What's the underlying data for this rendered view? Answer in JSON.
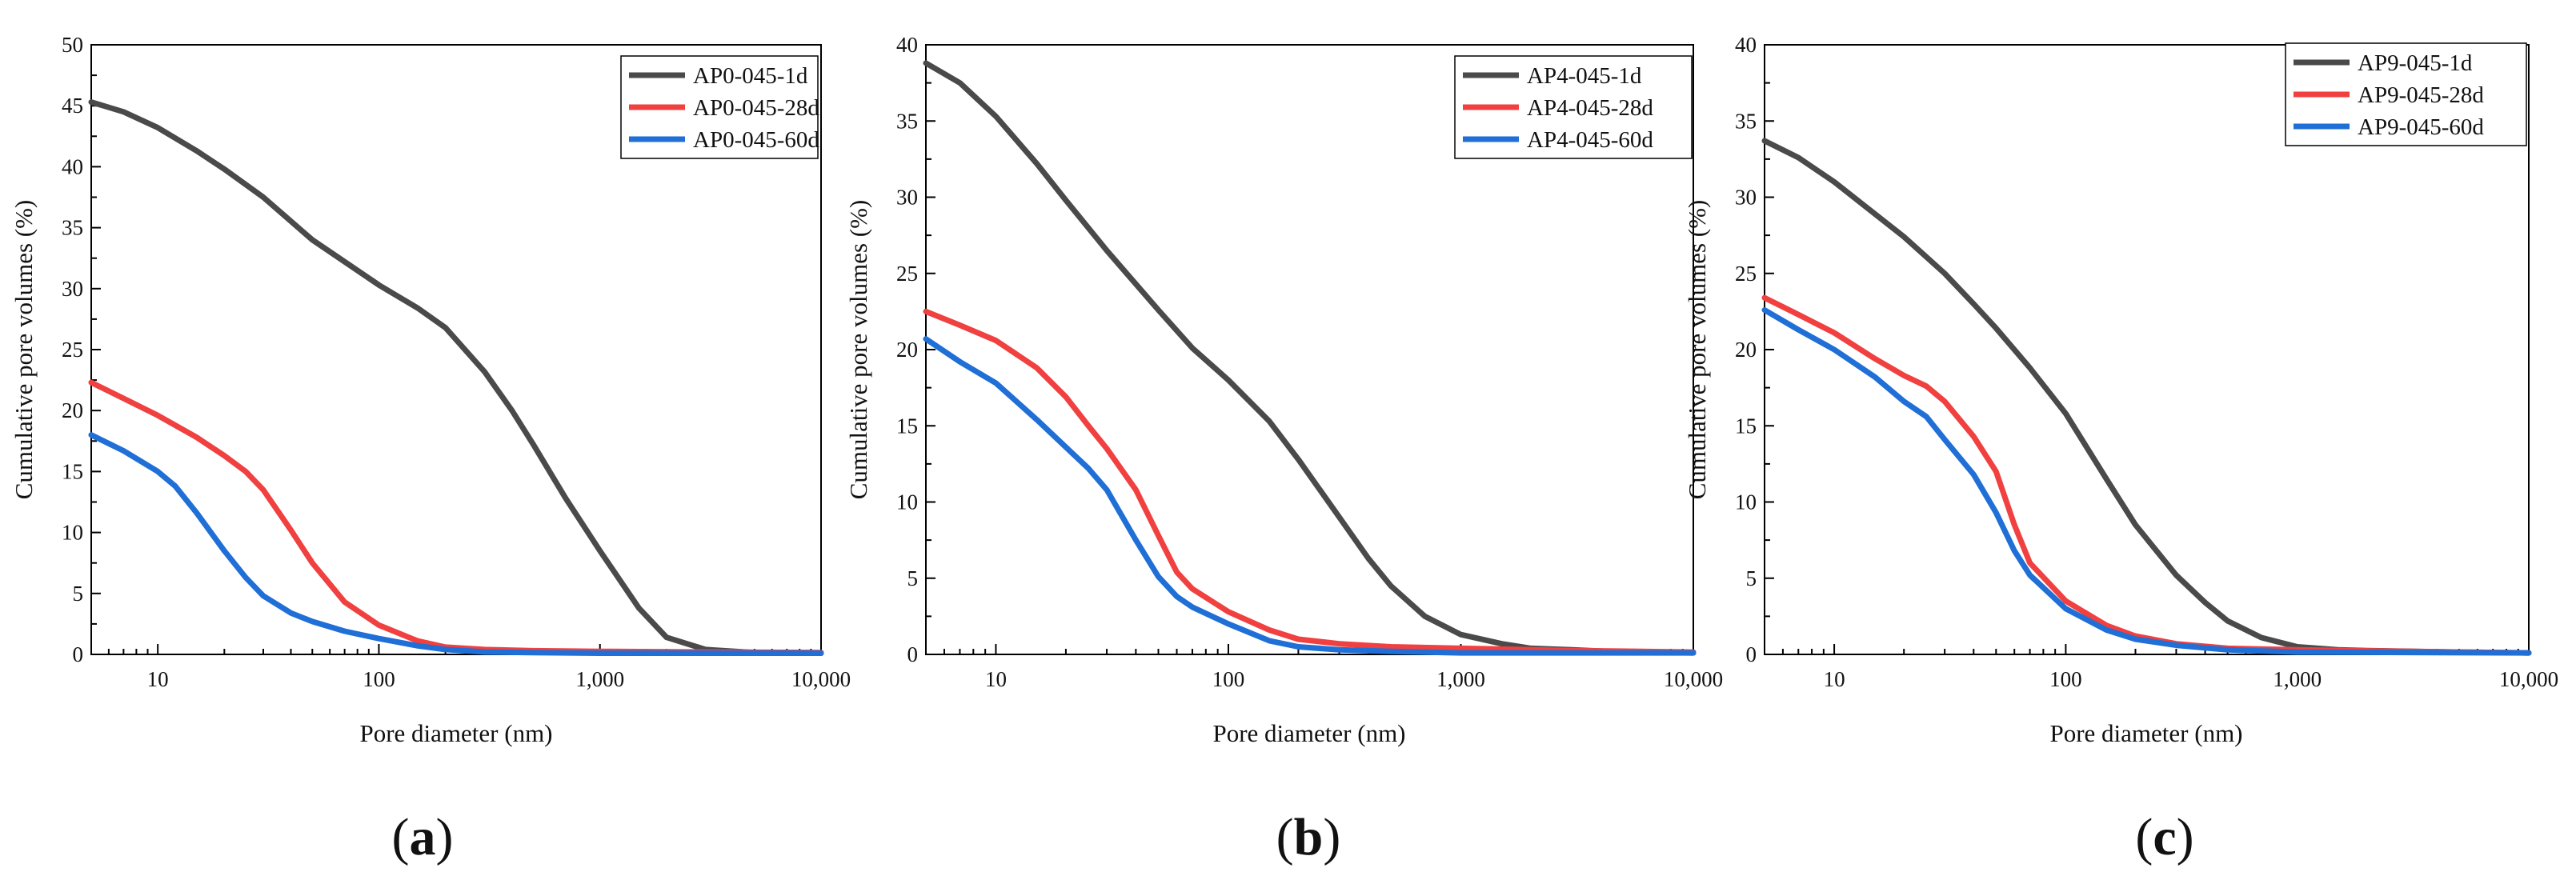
{
  "figure": {
    "panel_labels": [
      {
        "open": "(",
        "letter": "a",
        "close": ")"
      },
      {
        "open": "(",
        "letter": "b",
        "close": ")"
      },
      {
        "open": "(",
        "letter": "c",
        "close": ")"
      }
    ]
  },
  "chart_data": [
    {
      "type": "line",
      "title": "",
      "xlabel": "Pore diameter (nm)",
      "ylabel": "Cumulative pore volumes (%)",
      "xscale": "log",
      "xlim": [
        5,
        10000
      ],
      "ylim": [
        0,
        50
      ],
      "xticks": [
        {
          "value": 10,
          "label": "10"
        },
        {
          "value": 100,
          "label": "100"
        },
        {
          "value": 1000,
          "label": "1,000"
        },
        {
          "value": 10000,
          "label": "10,000"
        }
      ],
      "yticks": [
        0,
        5,
        10,
        15,
        20,
        25,
        30,
        35,
        40,
        45,
        50
      ],
      "ytick_labels": [
        "0",
        "5",
        "10",
        "15",
        "20",
        "25",
        "30",
        "35",
        "40",
        "45",
        "50"
      ],
      "grid": false,
      "legend_position": "top-right",
      "series": [
        {
          "name": "AP0-045-1d",
          "color": "#4a4a4a",
          "x": [
            5,
            7,
            10,
            15,
            20,
            30,
            50,
            100,
            150,
            200,
            300,
            400,
            500,
            700,
            1000,
            1500,
            2000,
            3000,
            5000,
            10000
          ],
          "values": [
            45.3,
            44.5,
            43.2,
            41.3,
            39.8,
            37.5,
            34.0,
            30.3,
            28.4,
            26.8,
            23.2,
            20.0,
            17.2,
            12.8,
            8.5,
            3.8,
            1.4,
            0.4,
            0.15,
            0.1
          ]
        },
        {
          "name": "AP0-045-28d",
          "color": "#f04040",
          "x": [
            5,
            7,
            10,
            15,
            20,
            25,
            30,
            40,
            50,
            70,
            100,
            150,
            200,
            300,
            500,
            1000,
            3000,
            10000
          ],
          "values": [
            22.3,
            21.0,
            19.6,
            17.8,
            16.3,
            15.0,
            13.5,
            10.2,
            7.5,
            4.3,
            2.4,
            1.1,
            0.6,
            0.4,
            0.3,
            0.25,
            0.2,
            0.15
          ]
        },
        {
          "name": "AP0-045-60d",
          "color": "#1f6fd6",
          "x": [
            5,
            7,
            10,
            12,
            15,
            20,
            25,
            30,
            40,
            50,
            70,
            100,
            150,
            200,
            300,
            500,
            1000,
            10000
          ],
          "values": [
            18.0,
            16.7,
            15.0,
            13.8,
            11.6,
            8.5,
            6.3,
            4.8,
            3.4,
            2.7,
            1.9,
            1.3,
            0.7,
            0.4,
            0.2,
            0.15,
            0.1,
            0.1
          ]
        }
      ]
    },
    {
      "type": "line",
      "title": "",
      "xlabel": "Pore diameter (nm)",
      "ylabel": "Cumulative pore volumes (%)",
      "xscale": "log",
      "xlim": [
        5,
        10000
      ],
      "ylim": [
        0,
        40
      ],
      "xticks": [
        {
          "value": 10,
          "label": "10"
        },
        {
          "value": 100,
          "label": "100"
        },
        {
          "value": 1000,
          "label": "1,000"
        },
        {
          "value": 10000,
          "label": "10,000"
        }
      ],
      "yticks": [
        0,
        5,
        10,
        15,
        20,
        25,
        30,
        35,
        40
      ],
      "ytick_labels": [
        "0",
        "5",
        "10",
        "15",
        "20",
        "25",
        "30",
        "35",
        "40"
      ],
      "grid": false,
      "legend_position": "top-right",
      "series": [
        {
          "name": "AP4-045-1d",
          "color": "#4a4a4a",
          "x": [
            5,
            7,
            10,
            15,
            20,
            30,
            50,
            70,
            100,
            150,
            200,
            300,
            400,
            500,
            700,
            1000,
            1500,
            2000,
            3000,
            5000,
            10000
          ],
          "values": [
            38.8,
            37.5,
            35.3,
            32.2,
            29.8,
            26.5,
            22.6,
            20.1,
            18.0,
            15.3,
            12.8,
            9.0,
            6.3,
            4.5,
            2.5,
            1.3,
            0.7,
            0.4,
            0.3,
            0.15,
            0.1
          ]
        },
        {
          "name": "AP4-045-28d",
          "color": "#f04040",
          "x": [
            5,
            7,
            10,
            15,
            20,
            25,
            30,
            40,
            50,
            60,
            70,
            100,
            150,
            200,
            300,
            500,
            1000,
            3000,
            10000
          ],
          "values": [
            22.5,
            21.6,
            20.6,
            18.8,
            16.9,
            15.0,
            13.5,
            10.8,
            7.8,
            5.4,
            4.3,
            2.8,
            1.6,
            1.0,
            0.7,
            0.5,
            0.4,
            0.25,
            0.15
          ]
        },
        {
          "name": "AP4-045-60d",
          "color": "#1f6fd6",
          "x": [
            5,
            7,
            10,
            15,
            20,
            25,
            30,
            40,
            50,
            60,
            70,
            100,
            150,
            200,
            300,
            500,
            1000,
            10000
          ],
          "values": [
            20.7,
            19.2,
            17.8,
            15.4,
            13.6,
            12.2,
            10.8,
            7.5,
            5.1,
            3.8,
            3.1,
            2.0,
            0.9,
            0.5,
            0.3,
            0.2,
            0.1,
            0.1
          ]
        }
      ]
    },
    {
      "type": "line",
      "title": "",
      "xlabel": "Pore diameter (nm)",
      "ylabel": "Cumulative pore volumes (%)",
      "xscale": "log",
      "xlim": [
        5,
        10000
      ],
      "ylim": [
        0,
        40
      ],
      "xticks": [
        {
          "value": 10,
          "label": "10"
        },
        {
          "value": 100,
          "label": "100"
        },
        {
          "value": 1000,
          "label": "1,000"
        },
        {
          "value": 10000,
          "label": "10,000"
        }
      ],
      "yticks": [
        0,
        5,
        10,
        15,
        20,
        25,
        30,
        35,
        40
      ],
      "ytick_labels": [
        "0",
        "5",
        "10",
        "15",
        "20",
        "25",
        "30",
        "35",
        "40"
      ],
      "grid": false,
      "legend_position": "top-right",
      "series": [
        {
          "name": "AP9-045-1d",
          "color": "#4a4a4a",
          "x": [
            5,
            7,
            10,
            15,
            20,
            30,
            40,
            50,
            70,
            100,
            150,
            200,
            300,
            400,
            500,
            700,
            1000,
            1500,
            2000,
            5000,
            10000
          ],
          "values": [
            33.7,
            32.6,
            31.0,
            28.9,
            27.4,
            25.0,
            23.0,
            21.4,
            18.8,
            15.8,
            11.5,
            8.5,
            5.2,
            3.4,
            2.2,
            1.1,
            0.5,
            0.3,
            0.25,
            0.15,
            0.1
          ]
        },
        {
          "name": "AP9-045-28d",
          "color": "#f04040",
          "x": [
            5,
            7,
            10,
            15,
            20,
            25,
            30,
            40,
            50,
            60,
            70,
            100,
            150,
            200,
            300,
            500,
            1000,
            3000,
            10000
          ],
          "values": [
            23.4,
            22.3,
            21.1,
            19.4,
            18.3,
            17.6,
            16.6,
            14.3,
            12.0,
            8.5,
            6.0,
            3.5,
            1.9,
            1.2,
            0.7,
            0.4,
            0.3,
            0.2,
            0.1
          ]
        },
        {
          "name": "AP9-045-60d",
          "color": "#1f6fd6",
          "x": [
            5,
            7,
            10,
            15,
            20,
            25,
            30,
            40,
            50,
            60,
            70,
            100,
            150,
            200,
            300,
            500,
            1000,
            10000
          ],
          "values": [
            22.6,
            21.3,
            20.0,
            18.2,
            16.6,
            15.6,
            14.1,
            11.8,
            9.3,
            6.8,
            5.2,
            3.0,
            1.6,
            1.0,
            0.6,
            0.3,
            0.15,
            0.1
          ]
        }
      ]
    }
  ]
}
